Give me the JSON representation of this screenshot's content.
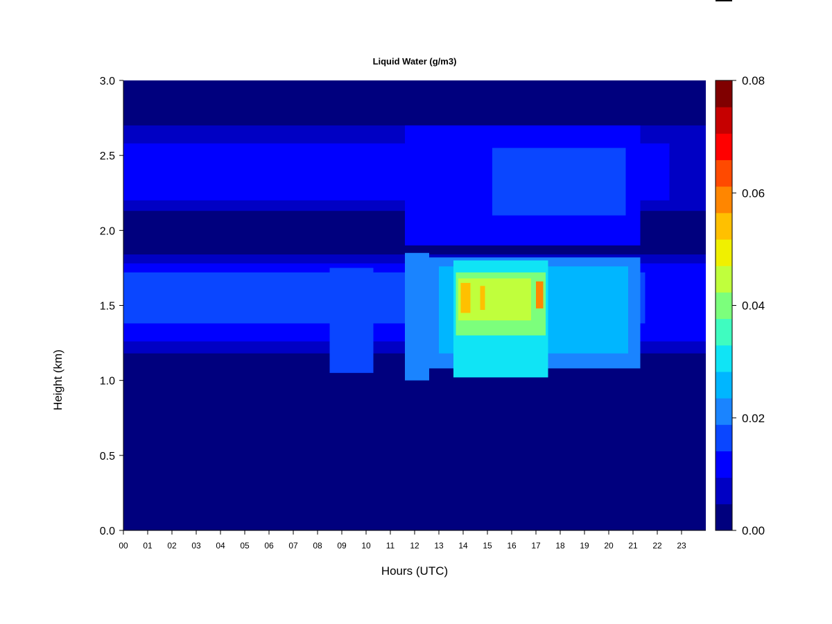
{
  "chart_data": {
    "type": "heatmap",
    "title": "Liquid Water (g/m3)",
    "xlabel": "Hours (UTC)",
    "ylabel": "Height (km)",
    "xlim": [
      0,
      24
    ],
    "ylim": [
      0,
      3
    ],
    "x_ticks": [
      "00",
      "01",
      "02",
      "03",
      "04",
      "05",
      "06",
      "07",
      "08",
      "09",
      "10",
      "11",
      "12",
      "13",
      "14",
      "15",
      "16",
      "17",
      "18",
      "19",
      "20",
      "21",
      "22",
      "23"
    ],
    "y_ticks": [
      "0.0",
      "0.5",
      "1.0",
      "1.5",
      "2.0",
      "2.5",
      "3.0"
    ],
    "colorbar": {
      "min": 0,
      "max": 0.08,
      "levels": 16,
      "ticks": [
        "0.00",
        "0.02",
        "0.04",
        "0.06",
        "0.08"
      ],
      "colors": [
        "#00007e",
        "#0000c4",
        "#0000ff",
        "#0a46ff",
        "#1a84ff",
        "#00b6ff",
        "#10e4f5",
        "#3ffcc0",
        "#7cff7c",
        "#c0ff3c",
        "#f0f000",
        "#ffc000",
        "#ff8600",
        "#ff4a00",
        "#ff0000",
        "#c60000",
        "#800000"
      ]
    },
    "layers": [
      {
        "x0": 0.0,
        "x1": 24.0,
        "y0": 1.18,
        "y1": 1.84,
        "value": 0.008
      },
      {
        "x0": 0.0,
        "x1": 24.0,
        "y0": 1.26,
        "y1": 1.78,
        "value": 0.012
      },
      {
        "x0": 0.0,
        "x1": 21.5,
        "y0": 1.38,
        "y1": 1.72,
        "value": 0.017
      },
      {
        "x0": 8.5,
        "x1": 10.3,
        "y0": 1.05,
        "y1": 1.75,
        "value": 0.019
      },
      {
        "x0": 11.6,
        "x1": 12.6,
        "y0": 1.0,
        "y1": 1.85,
        "value": 0.022
      },
      {
        "x0": 12.6,
        "x1": 21.3,
        "y0": 1.08,
        "y1": 1.82,
        "value": 0.023
      },
      {
        "x0": 13.0,
        "x1": 20.8,
        "y0": 1.18,
        "y1": 1.76,
        "value": 0.028
      },
      {
        "x0": 13.6,
        "x1": 17.5,
        "y0": 1.02,
        "y1": 1.8,
        "value": 0.033
      },
      {
        "x0": 13.7,
        "x1": 17.4,
        "y0": 1.3,
        "y1": 1.72,
        "value": 0.04
      },
      {
        "x0": 13.8,
        "x1": 16.8,
        "y0": 1.4,
        "y1": 1.68,
        "value": 0.048
      },
      {
        "x0": 13.9,
        "x1": 14.3,
        "y0": 1.45,
        "y1": 1.65,
        "value": 0.058
      },
      {
        "x0": 14.7,
        "x1": 14.9,
        "y0": 1.47,
        "y1": 1.63,
        "value": 0.056
      },
      {
        "x0": 17.0,
        "x1": 17.3,
        "y0": 1.48,
        "y1": 1.66,
        "value": 0.062
      },
      {
        "x0": 0.0,
        "x1": 24.0,
        "y0": 2.13,
        "y1": 2.7,
        "value": 0.007
      },
      {
        "x0": 0.0,
        "x1": 22.5,
        "y0": 2.2,
        "y1": 2.58,
        "value": 0.012
      },
      {
        "x0": 11.6,
        "x1": 21.3,
        "y0": 1.9,
        "y1": 2.7,
        "value": 0.012
      },
      {
        "x0": 15.2,
        "x1": 20.7,
        "y0": 2.1,
        "y1": 2.55,
        "value": 0.016
      },
      {
        "x0": 0.0,
        "x1": 11.5,
        "y0": 1.84,
        "y1": 2.1,
        "value": 0.0
      },
      {
        "x0": 21.3,
        "x1": 24.0,
        "y0": 1.84,
        "y1": 2.1,
        "value": 0.0
      }
    ]
  }
}
